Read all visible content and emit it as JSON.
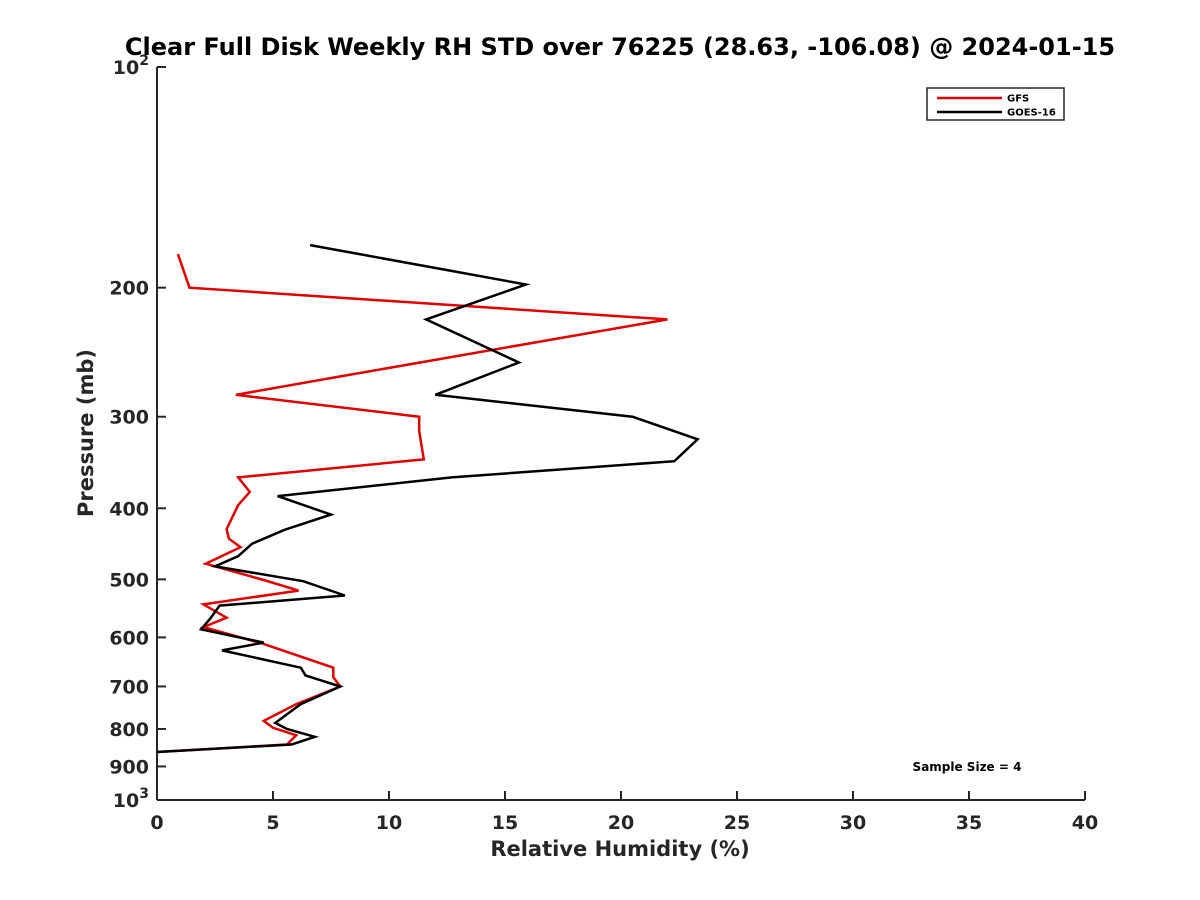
{
  "chart_data": {
    "type": "line",
    "title": "Clear Full Disk Weekly RH STD over 76225 (28.63, -106.08) @ 2024-01-15",
    "xlabel": "Relative Humidity (%)",
    "ylabel": "Pressure (mb)",
    "xlim": [
      0,
      40
    ],
    "ylim": [
      100,
      1000
    ],
    "y_scale": "log",
    "y_reversed": true,
    "x_ticks": [
      "0",
      "5",
      "10",
      "15",
      "20",
      "25",
      "30",
      "35",
      "40"
    ],
    "y_ticks": [
      {
        "value": 100,
        "base": "10",
        "exp": "2"
      },
      {
        "value": 200,
        "label": "200"
      },
      {
        "value": 300,
        "label": "300"
      },
      {
        "value": 400,
        "label": "400"
      },
      {
        "value": 500,
        "label": "500"
      },
      {
        "value": 600,
        "label": "600"
      },
      {
        "value": 700,
        "label": "700"
      },
      {
        "value": 800,
        "label": "800"
      },
      {
        "value": 900,
        "label": "900"
      },
      {
        "value": 1000,
        "base": "10",
        "exp": "3"
      }
    ],
    "legend_position": "top-right",
    "grid": false,
    "annotation": "Sample Size = 4",
    "series": [
      {
        "name": "GFS",
        "color": "#e00000",
        "points": [
          [
            0.9,
            180
          ],
          [
            1.4,
            200
          ],
          [
            22.0,
            221
          ],
          [
            8.0,
            264
          ],
          [
            3.4,
            280
          ],
          [
            11.3,
            300
          ],
          [
            11.3,
            314
          ],
          [
            11.5,
            343
          ],
          [
            3.5,
            363
          ],
          [
            4.0,
            380
          ],
          [
            3.5,
            396
          ],
          [
            3.0,
            427
          ],
          [
            3.1,
            440
          ],
          [
            3.6,
            452
          ],
          [
            2.1,
            476
          ],
          [
            4.6,
            501
          ],
          [
            6.1,
            518
          ],
          [
            2.0,
            541
          ],
          [
            3.0,
            564
          ],
          [
            2.0,
            581
          ],
          [
            4.5,
            611
          ],
          [
            7.6,
            660
          ],
          [
            7.6,
            680
          ],
          [
            7.9,
            700
          ],
          [
            6.0,
            740
          ],
          [
            4.6,
            780
          ],
          [
            5.0,
            797
          ],
          [
            6.0,
            816
          ],
          [
            5.6,
            840
          ],
          [
            0,
            860
          ]
        ]
      },
      {
        "name": "GOES-16",
        "color": "#000000",
        "points": [
          [
            6.6,
            175
          ],
          [
            15.9,
            198
          ],
          [
            11.6,
            221
          ],
          [
            15.6,
            253
          ],
          [
            12.0,
            280
          ],
          [
            20.5,
            300
          ],
          [
            23.3,
            322
          ],
          [
            22.3,
            345
          ],
          [
            12.7,
            363
          ],
          [
            5.2,
            385
          ],
          [
            7.5,
            408
          ],
          [
            5.5,
            428
          ],
          [
            4.1,
            447
          ],
          [
            3.5,
            465
          ],
          [
            2.5,
            480
          ],
          [
            6.3,
            503
          ],
          [
            8.1,
            526
          ],
          [
            2.7,
            543
          ],
          [
            2.3,
            565
          ],
          [
            1.9,
            585
          ],
          [
            4.6,
            610
          ],
          [
            2.8,
            625
          ],
          [
            6.2,
            660
          ],
          [
            6.4,
            676
          ],
          [
            7.9,
            700
          ],
          [
            6.2,
            740
          ],
          [
            5.1,
            785
          ],
          [
            5.6,
            800
          ],
          [
            6.8,
            820
          ],
          [
            5.8,
            840
          ],
          [
            0,
            860
          ]
        ]
      }
    ]
  }
}
